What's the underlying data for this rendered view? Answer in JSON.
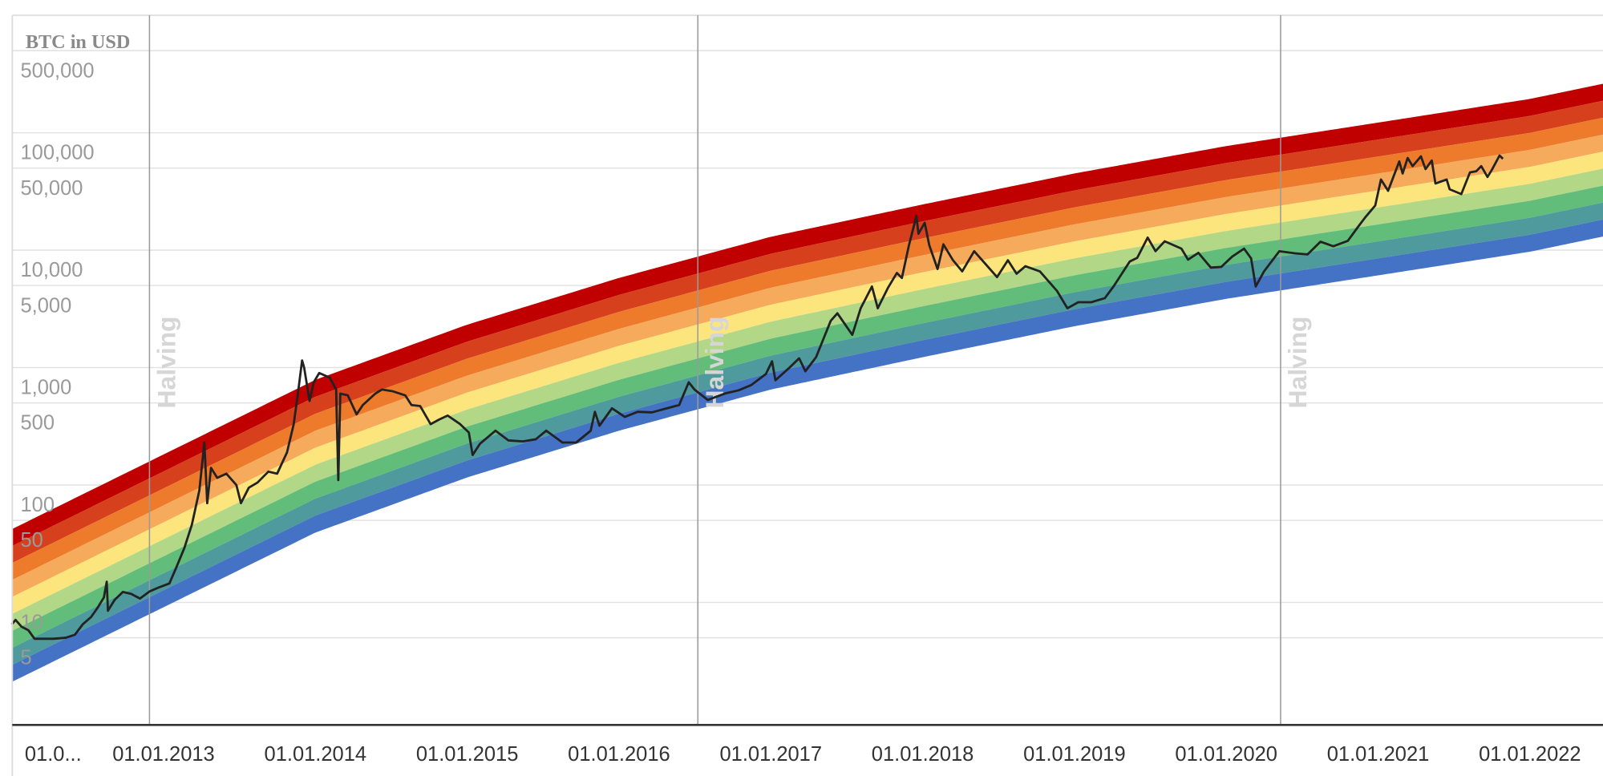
{
  "chart_data": {
    "type": "line",
    "title": "BTC in USD",
    "y_scale": "log",
    "ylim": [
      1,
      1000000
    ],
    "xlim": [
      "2012-01-01",
      "2022-06-25"
    ],
    "grid": true,
    "y_ticks": [
      {
        "value": 500000,
        "label": "500,000"
      },
      {
        "value": 100000,
        "label": "100,000"
      },
      {
        "value": 50000,
        "label": "50,000"
      },
      {
        "value": 10000,
        "label": "10,000"
      },
      {
        "value": 5000,
        "label": "5,000"
      },
      {
        "value": 1000,
        "label": "1,000"
      },
      {
        "value": 500,
        "label": "500"
      },
      {
        "value": 100,
        "label": "100"
      },
      {
        "value": 50,
        "label": "50"
      },
      {
        "value": 10,
        "label": "10"
      },
      {
        "value": 5,
        "label": "5"
      }
    ],
    "x_ticks": [
      {
        "date": "2012-01-01",
        "label": "01.0..."
      },
      {
        "date": "2013-01-01",
        "label": "01.01.2013"
      },
      {
        "date": "2014-01-01",
        "label": "01.01.2014"
      },
      {
        "date": "2015-01-01",
        "label": "01.01.2015"
      },
      {
        "date": "2016-01-01",
        "label": "01.01.2016"
      },
      {
        "date": "2017-01-01",
        "label": "01.01.2017"
      },
      {
        "date": "2018-01-01",
        "label": "01.01.2018"
      },
      {
        "date": "2019-01-01",
        "label": "01.01.2019"
      },
      {
        "date": "2020-01-01",
        "label": "01.01.2020"
      },
      {
        "date": "2021-01-01",
        "label": "01.01.2021"
      },
      {
        "date": "2022-01-01",
        "label": "01.01.2022"
      }
    ],
    "halvings": [
      {
        "date": "2012-11-28",
        "label": "Halving"
      },
      {
        "date": "2016-07-09",
        "label": "Halving"
      },
      {
        "date": "2020-05-11",
        "label": "Halving"
      }
    ],
    "rainbow": {
      "band_colors": [
        "#c00000",
        "#d7401c",
        "#ee7b2c",
        "#f6aa5c",
        "#fde57e",
        "#b2d787",
        "#62bd7a",
        "#4e9a9c",
        "#4472c4"
      ],
      "upper_bound": [
        {
          "date": "2012-01-01",
          "value": 42
        },
        {
          "date": "2013-01-01",
          "value": 182
        },
        {
          "date": "2014-01-01",
          "value": 787
        },
        {
          "date": "2015-01-01",
          "value": 2320
        },
        {
          "date": "2016-01-01",
          "value": 5800
        },
        {
          "date": "2017-01-01",
          "value": 13000
        },
        {
          "date": "2018-01-01",
          "value": 24500
        },
        {
          "date": "2019-01-01",
          "value": 45000
        },
        {
          "date": "2020-01-01",
          "value": 77000
        },
        {
          "date": "2021-01-01",
          "value": 122000
        },
        {
          "date": "2022-01-01",
          "value": 194000
        },
        {
          "date": "2022-06-25",
          "value": 261000
        }
      ],
      "lower_bound_ratio": 0.05
    },
    "series": [
      {
        "color": "#222222",
        "points": [
          [
            "2012-01-01",
            6.5
          ],
          [
            "2012-01-10",
            7.1
          ],
          [
            "2012-01-25",
            6.2
          ],
          [
            "2012-02-10",
            5.8
          ],
          [
            "2012-02-25",
            4.9
          ],
          [
            "2012-03-15",
            4.9
          ],
          [
            "2012-04-10",
            4.9
          ],
          [
            "2012-05-10",
            5.0
          ],
          [
            "2012-06-01",
            5.3
          ],
          [
            "2012-06-20",
            6.5
          ],
          [
            "2012-07-10",
            7.5
          ],
          [
            "2012-07-25",
            8.9
          ],
          [
            "2012-08-10",
            11
          ],
          [
            "2012-08-17",
            15
          ],
          [
            "2012-08-20",
            8.5
          ],
          [
            "2012-09-05",
            10.5
          ],
          [
            "2012-09-25",
            12.3
          ],
          [
            "2012-10-15",
            11.8
          ],
          [
            "2012-11-05",
            10.8
          ],
          [
            "2012-11-28",
            12.4
          ],
          [
            "2012-12-20",
            13.4
          ],
          [
            "2013-01-15",
            14.5
          ],
          [
            "2013-02-01",
            20
          ],
          [
            "2013-02-20",
            29
          ],
          [
            "2013-03-10",
            46
          ],
          [
            "2013-03-28",
            90
          ],
          [
            "2013-04-09",
            230
          ],
          [
            "2013-04-16",
            70
          ],
          [
            "2013-04-25",
            140
          ],
          [
            "2013-05-10",
            115
          ],
          [
            "2013-06-01",
            125
          ],
          [
            "2013-06-25",
            100
          ],
          [
            "2013-07-06",
            70
          ],
          [
            "2013-07-25",
            95
          ],
          [
            "2013-08-15",
            105
          ],
          [
            "2013-09-10",
            130
          ],
          [
            "2013-10-01",
            125
          ],
          [
            "2013-10-25",
            190
          ],
          [
            "2013-11-10",
            330
          ],
          [
            "2013-11-20",
            600
          ],
          [
            "2013-11-30",
            1150
          ],
          [
            "2013-12-05",
            1000
          ],
          [
            "2013-12-18",
            520
          ],
          [
            "2013-12-28",
            750
          ],
          [
            "2014-01-10",
            900
          ],
          [
            "2014-02-05",
            820
          ],
          [
            "2014-02-20",
            650
          ],
          [
            "2014-02-25",
            110
          ],
          [
            "2014-03-02",
            600
          ],
          [
            "2014-03-20",
            580
          ],
          [
            "2014-04-10",
            400
          ],
          [
            "2014-04-25",
            480
          ],
          [
            "2014-05-25",
            600
          ],
          [
            "2014-06-10",
            650
          ],
          [
            "2014-07-05",
            630
          ],
          [
            "2014-08-05",
            580
          ],
          [
            "2014-08-20",
            480
          ],
          [
            "2014-09-10",
            470
          ],
          [
            "2014-10-05",
            330
          ],
          [
            "2014-10-25",
            360
          ],
          [
            "2014-11-15",
            390
          ],
          [
            "2014-12-15",
            330
          ],
          [
            "2015-01-05",
            280
          ],
          [
            "2015-01-14",
            180
          ],
          [
            "2015-02-01",
            225
          ],
          [
            "2015-03-10",
            290
          ],
          [
            "2015-04-10",
            240
          ],
          [
            "2015-05-15",
            235
          ],
          [
            "2015-06-15",
            245
          ],
          [
            "2015-07-10",
            290
          ],
          [
            "2015-08-18",
            230
          ],
          [
            "2015-09-20",
            230
          ],
          [
            "2015-10-25",
            290
          ],
          [
            "2015-11-04",
            420
          ],
          [
            "2015-11-15",
            320
          ],
          [
            "2015-12-15",
            450
          ],
          [
            "2016-01-15",
            380
          ],
          [
            "2016-02-15",
            420
          ],
          [
            "2016-03-20",
            415
          ],
          [
            "2016-04-25",
            450
          ],
          [
            "2016-05-25",
            480
          ],
          [
            "2016-06-17",
            750
          ],
          [
            "2016-07-01",
            650
          ],
          [
            "2016-08-02",
            530
          ],
          [
            "2016-09-15",
            605
          ],
          [
            "2016-10-15",
            640
          ],
          [
            "2016-11-15",
            710
          ],
          [
            "2016-12-20",
            880
          ],
          [
            "2017-01-04",
            1130
          ],
          [
            "2017-01-12",
            780
          ],
          [
            "2017-02-15",
            1000
          ],
          [
            "2017-03-10",
            1200
          ],
          [
            "2017-03-25",
            930
          ],
          [
            "2017-04-20",
            1230
          ],
          [
            "2017-05-25",
            2500
          ],
          [
            "2017-06-10",
            2900
          ],
          [
            "2017-07-16",
            1900
          ],
          [
            "2017-08-05",
            3200
          ],
          [
            "2017-09-01",
            4900
          ],
          [
            "2017-09-15",
            3200
          ],
          [
            "2017-10-10",
            4800
          ],
          [
            "2017-10-31",
            6400
          ],
          [
            "2017-11-12",
            5800
          ],
          [
            "2017-11-29",
            11000
          ],
          [
            "2017-12-17",
            19500
          ],
          [
            "2017-12-22",
            13800
          ],
          [
            "2018-01-06",
            17100
          ],
          [
            "2018-01-17",
            11000
          ],
          [
            "2018-02-06",
            6900
          ],
          [
            "2018-02-20",
            11200
          ],
          [
            "2018-03-15",
            8200
          ],
          [
            "2018-04-06",
            6600
          ],
          [
            "2018-05-05",
            9800
          ],
          [
            "2018-06-29",
            5900
          ],
          [
            "2018-07-25",
            8200
          ],
          [
            "2018-08-15",
            6300
          ],
          [
            "2018-09-05",
            7300
          ],
          [
            "2018-10-10",
            6600
          ],
          [
            "2018-11-20",
            4500
          ],
          [
            "2018-12-15",
            3200
          ],
          [
            "2019-01-10",
            3600
          ],
          [
            "2019-02-10",
            3600
          ],
          [
            "2019-03-15",
            3900
          ],
          [
            "2019-04-05",
            4900
          ],
          [
            "2019-05-14",
            8000
          ],
          [
            "2019-06-01",
            8600
          ],
          [
            "2019-06-26",
            12800
          ],
          [
            "2019-07-15",
            9800
          ],
          [
            "2019-08-06",
            11900
          ],
          [
            "2019-09-15",
            10300
          ],
          [
            "2019-10-01",
            8300
          ],
          [
            "2019-10-26",
            9500
          ],
          [
            "2019-11-25",
            7100
          ],
          [
            "2019-12-20",
            7200
          ],
          [
            "2020-01-15",
            8800
          ],
          [
            "2020-02-13",
            10300
          ],
          [
            "2020-03-01",
            8500
          ],
          [
            "2020-03-12",
            4900
          ],
          [
            "2020-04-01",
            6600
          ],
          [
            "2020-05-08",
            9800
          ],
          [
            "2020-06-15",
            9400
          ],
          [
            "2020-07-15",
            9200
          ],
          [
            "2020-08-15",
            11800
          ],
          [
            "2020-09-15",
            10800
          ],
          [
            "2020-10-20",
            12000
          ],
          [
            "2020-11-15",
            16000
          ],
          [
            "2020-12-01",
            19000
          ],
          [
            "2020-12-25",
            24000
          ],
          [
            "2021-01-08",
            40000
          ],
          [
            "2021-01-25",
            32000
          ],
          [
            "2021-02-21",
            57000
          ],
          [
            "2021-03-01",
            45000
          ],
          [
            "2021-03-13",
            61000
          ],
          [
            "2021-03-25",
            52000
          ],
          [
            "2021-04-14",
            63000
          ],
          [
            "2021-04-25",
            49000
          ],
          [
            "2021-05-10",
            58000
          ],
          [
            "2021-05-19",
            37000
          ],
          [
            "2021-06-15",
            40000
          ],
          [
            "2021-06-22",
            33000
          ],
          [
            "2021-07-20",
            30000
          ],
          [
            "2021-08-10",
            46000
          ],
          [
            "2021-08-25",
            47000
          ],
          [
            "2021-09-06",
            52000
          ],
          [
            "2021-09-21",
            42000
          ],
          [
            "2021-10-01",
            48000
          ],
          [
            "2021-10-20",
            64000
          ],
          [
            "2021-10-28",
            60000
          ]
        ]
      }
    ]
  }
}
